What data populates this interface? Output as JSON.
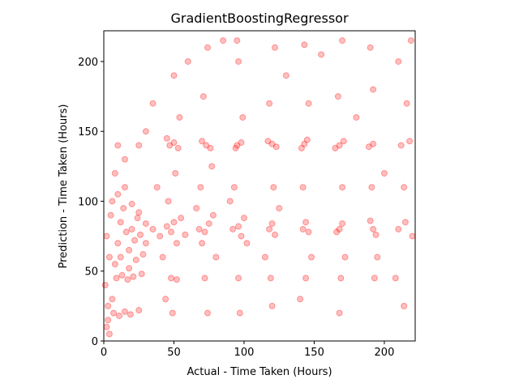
{
  "chart_data": {
    "type": "scatter",
    "title": "GradientBoostingRegressor",
    "x_label": "Actual - Time Taken (Hours)",
    "y_label": "Prediction - Time Taken (Hours)",
    "color": "#ff0000",
    "xlim": [
      0,
      222
    ],
    "ylim": [
      0,
      222
    ],
    "xticks": [
      0,
      50,
      100,
      150,
      200
    ],
    "yticks": [
      0,
      50,
      100,
      150,
      200
    ],
    "x": [
      2,
      3,
      1,
      4,
      2,
      5,
      3,
      6,
      8,
      10,
      12,
      14,
      16,
      18,
      20,
      22,
      24,
      26,
      28,
      30,
      7,
      11,
      15,
      19,
      25,
      9,
      13,
      17,
      21,
      27,
      4,
      6,
      10,
      15,
      20,
      25,
      30,
      12,
      18,
      23,
      35,
      40,
      45,
      48,
      50,
      52,
      55,
      58,
      47,
      50,
      53,
      45,
      48,
      52,
      49,
      46,
      51,
      54,
      50,
      42,
      38,
      44,
      68,
      72,
      75,
      70,
      78,
      73,
      70,
      76,
      72,
      74,
      69,
      77,
      71,
      74,
      66,
      80,
      92,
      96,
      98,
      100,
      95,
      98,
      94,
      96,
      97,
      93,
      99,
      96,
      95,
      102,
      90,
      118,
      120,
      122,
      120,
      123,
      117,
      119,
      121,
      118,
      122,
      115,
      125,
      120,
      142,
      144,
      146,
      143,
      145,
      141,
      144,
      142,
      146,
      143,
      148,
      140,
      168,
      170,
      166,
      168,
      171,
      165,
      169,
      170,
      167,
      170,
      172,
      168,
      192,
      190,
      194,
      192,
      189,
      193,
      191,
      192,
      190,
      195,
      210,
      215,
      220,
      212,
      218,
      214,
      216,
      210,
      219,
      208,
      214,
      60,
      85,
      130,
      155,
      180,
      200,
      35,
      25,
      30,
      15,
      8,
      10
    ],
    "values": [
      10,
      25,
      40,
      60,
      75,
      90,
      15,
      30,
      55,
      70,
      85,
      95,
      78,
      65,
      80,
      72,
      88,
      76,
      62,
      84,
      20,
      18,
      21,
      19,
      22,
      45,
      47,
      44,
      46,
      48,
      5,
      100,
      105,
      110,
      98,
      92,
      70,
      60,
      52,
      58,
      80,
      75,
      82,
      78,
      85,
      70,
      88,
      76,
      140,
      142,
      138,
      145,
      45,
      44,
      20,
      100,
      120,
      160,
      190,
      60,
      110,
      30,
      80,
      78,
      84,
      70,
      90,
      140,
      143,
      138,
      45,
      20,
      110,
      125,
      175,
      210,
      95,
      60,
      80,
      82,
      75,
      88,
      140,
      142,
      138,
      45,
      20,
      110,
      160,
      200,
      215,
      70,
      100,
      80,
      84,
      76,
      141,
      139,
      143,
      45,
      110,
      170,
      210,
      60,
      95,
      25,
      80,
      85,
      78,
      141,
      144,
      138,
      45,
      110,
      170,
      212,
      60,
      30,
      80,
      84,
      78,
      140,
      143,
      138,
      45,
      110,
      175,
      215,
      60,
      20,
      80,
      86,
      76,
      141,
      139,
      45,
      110,
      180,
      210,
      60,
      80,
      85,
      75,
      140,
      143,
      110,
      170,
      200,
      215,
      45,
      25,
      200,
      215,
      190,
      205,
      160,
      120,
      170,
      140,
      150,
      130,
      120,
      140
    ]
  }
}
